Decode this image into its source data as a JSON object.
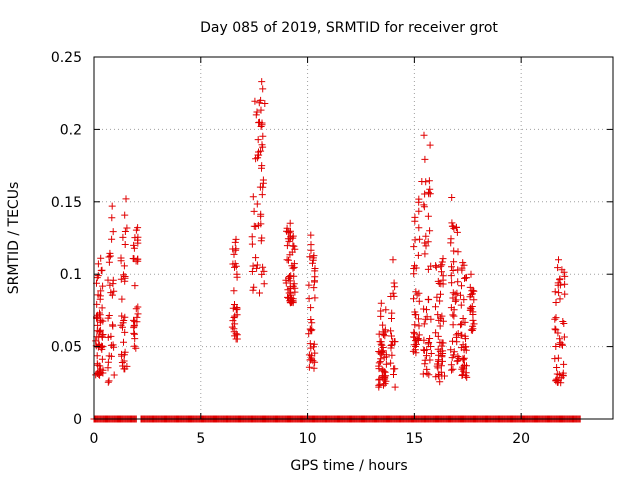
{
  "chart_data": {
    "type": "scatter",
    "title": "Day 085 of 2019, SRMTID for receiver grot",
    "xlabel": "GPS time / hours",
    "ylabel": "SRMTID / TECUs",
    "xlim": [
      0,
      24.3
    ],
    "ylim": [
      0,
      0.25
    ],
    "xticks": [
      0,
      5,
      10,
      15,
      20
    ],
    "xtick_labels": [
      "0",
      "5",
      "10",
      "15",
      "20"
    ],
    "yticks": [
      0,
      0.05,
      0.1,
      0.15,
      0.2,
      0.25
    ],
    "ytick_labels": [
      "0",
      "0.05",
      "0.1",
      "0.15",
      "0.2",
      "0.25"
    ],
    "grid": true,
    "marker": "plus",
    "color": "#e00000",
    "zero_baseline": {
      "y": 0,
      "x_segments": [
        [
          0.0,
          2.0
        ],
        [
          2.2,
          22.8
        ]
      ]
    },
    "clusters": [
      {
        "x_center": 0.25,
        "x_spread": 0.18,
        "y_min": 0.03,
        "y_max": 0.115,
        "count": 55
      },
      {
        "x_center": 0.8,
        "x_spread": 0.15,
        "y_min": 0.025,
        "y_max": 0.148,
        "count": 30
      },
      {
        "x_center": 1.4,
        "x_spread": 0.15,
        "y_min": 0.033,
        "y_max": 0.152,
        "count": 32
      },
      {
        "x_center": 1.95,
        "x_spread": 0.12,
        "y_min": 0.048,
        "y_max": 0.142,
        "count": 30
      },
      {
        "x_center": 6.6,
        "x_spread": 0.12,
        "y_min": 0.055,
        "y_max": 0.124,
        "count": 30
      },
      {
        "x_center": 7.7,
        "x_spread": 0.3,
        "y_min": 0.087,
        "y_max": 0.234,
        "count": 45
      },
      {
        "x_center": 9.2,
        "x_spread": 0.22,
        "y_min": 0.08,
        "y_max": 0.138,
        "count": 55
      },
      {
        "x_center": 10.2,
        "x_spread": 0.15,
        "y_min": 0.035,
        "y_max": 0.127,
        "count": 38
      },
      {
        "x_center": 13.5,
        "x_spread": 0.2,
        "y_min": 0.022,
        "y_max": 0.082,
        "count": 50
      },
      {
        "x_center": 14.0,
        "x_spread": 0.12,
        "y_min": 0.028,
        "y_max": 0.11,
        "count": 20
      },
      {
        "x_center": 15.1,
        "x_spread": 0.15,
        "y_min": 0.045,
        "y_max": 0.158,
        "count": 40
      },
      {
        "x_center": 15.6,
        "x_spread": 0.2,
        "y_min": 0.03,
        "y_max": 0.196,
        "count": 45
      },
      {
        "x_center": 16.2,
        "x_spread": 0.22,
        "y_min": 0.025,
        "y_max": 0.12,
        "count": 50
      },
      {
        "x_center": 16.9,
        "x_spread": 0.2,
        "y_min": 0.03,
        "y_max": 0.153,
        "count": 45
      },
      {
        "x_center": 17.3,
        "x_spread": 0.15,
        "y_min": 0.028,
        "y_max": 0.115,
        "count": 40
      },
      {
        "x_center": 17.7,
        "x_spread": 0.1,
        "y_min": 0.06,
        "y_max": 0.1,
        "count": 20
      },
      {
        "x_center": 21.8,
        "x_spread": 0.25,
        "y_min": 0.025,
        "y_max": 0.11,
        "count": 45
      }
    ],
    "sample_points": [
      [
        7.85,
        0.233
      ],
      [
        7.9,
        0.228
      ],
      [
        7.8,
        0.22
      ],
      [
        7.6,
        0.21
      ],
      [
        7.75,
        0.205
      ],
      [
        7.8,
        0.185
      ],
      [
        7.85,
        0.175
      ],
      [
        7.9,
        0.16
      ],
      [
        7.8,
        0.14
      ],
      [
        7.85,
        0.125
      ],
      [
        7.75,
        0.087
      ],
      [
        15.45,
        0.196
      ],
      [
        15.35,
        0.164
      ],
      [
        16.75,
        0.153
      ],
      [
        1.5,
        0.152
      ],
      [
        0.85,
        0.147
      ],
      [
        6.65,
        0.124
      ],
      [
        10.15,
        0.127
      ],
      [
        0.2,
        0.099
      ],
      [
        0.3,
        0.085
      ],
      [
        0.4,
        0.05
      ],
      [
        0.25,
        0.033
      ],
      [
        13.45,
        0.08
      ],
      [
        13.5,
        0.03
      ],
      [
        14.0,
        0.11
      ],
      [
        14.1,
        0.022
      ],
      [
        21.75,
        0.11
      ],
      [
        21.85,
        0.025
      ],
      [
        17.65,
        0.1
      ],
      [
        10.3,
        0.035
      ]
    ]
  }
}
